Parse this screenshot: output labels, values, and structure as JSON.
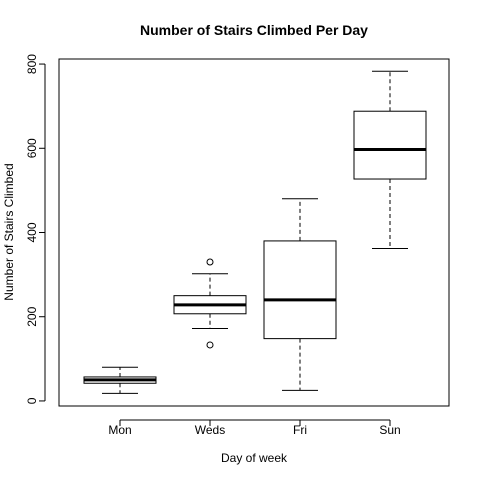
{
  "chart_data": {
    "type": "boxplot",
    "title": "Number of Stairs Climbed Per Day",
    "xlabel": "Day of week",
    "ylabel": "Number of Stairs Climbed",
    "categories": [
      "Mon",
      "Weds",
      "Fri",
      "Sun"
    ],
    "y_ticks": [
      0,
      200,
      400,
      600,
      800
    ],
    "y_tick_labels": [
      "0",
      "200",
      "400",
      "600",
      "800"
    ],
    "ylim": [
      -12,
      812
    ],
    "boxes": [
      {
        "category": "Mon",
        "whisker_low": 18,
        "q1": 42,
        "median": 50,
        "q3": 57,
        "whisker_high": 80,
        "outliers": []
      },
      {
        "category": "Weds",
        "whisker_low": 172,
        "q1": 207,
        "median": 228,
        "q3": 250,
        "whisker_high": 302,
        "outliers": [
          330,
          133
        ]
      },
      {
        "category": "Fri",
        "whisker_low": 25,
        "q1": 148,
        "median": 240,
        "q3": 380,
        "whisker_high": 480,
        "outliers": []
      },
      {
        "category": "Sun",
        "whisker_low": 362,
        "q1": 527,
        "median": 597,
        "q3": 688,
        "whisker_high": 783,
        "outliers": []
      }
    ],
    "grid": false,
    "box_fill": "#ffffff",
    "line_color": "#000000"
  }
}
